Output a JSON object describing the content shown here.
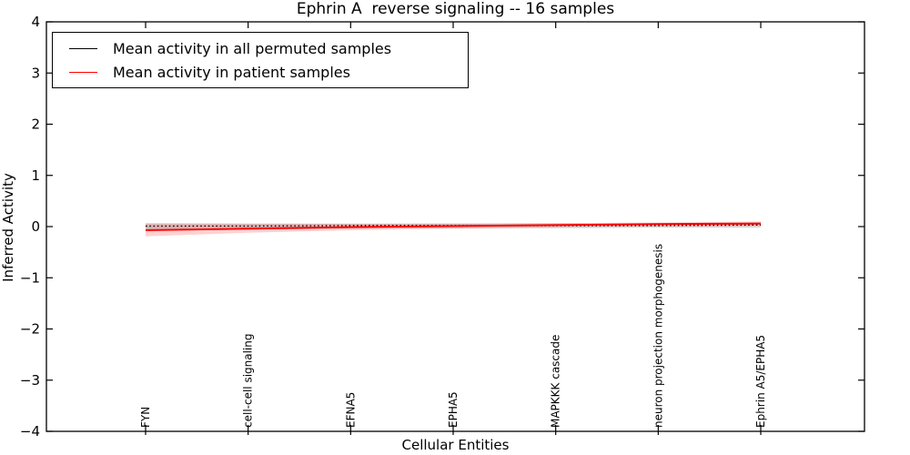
{
  "figure": {
    "title": "Ephrin A  reverse signaling -- 16 samples",
    "xlabel": "Cellular Entities",
    "ylabel": "Inferred Activity"
  },
  "legend": {
    "entries": [
      {
        "label": "Mean activity in all permuted samples",
        "color": "#000000"
      },
      {
        "label": "Mean activity in patient samples",
        "color": "#ff0000"
      }
    ],
    "position": "upper left"
  },
  "chart_data": {
    "type": "line",
    "title": "Ephrin A  reverse signaling -- 16 samples",
    "xlabel": "Cellular Entities",
    "ylabel": "Inferred Activity",
    "ylim": [
      -4,
      4
    ],
    "grid": false,
    "legend_position": "upper left",
    "yticks": [
      {
        "value": 4,
        "label": "4"
      },
      {
        "value": 3,
        "label": "3"
      },
      {
        "value": 2,
        "label": "2"
      },
      {
        "value": 1,
        "label": "1"
      },
      {
        "value": 0,
        "label": "0"
      },
      {
        "value": -1,
        "label": "−1"
      },
      {
        "value": -2,
        "label": "−2"
      },
      {
        "value": -3,
        "label": "−3"
      },
      {
        "value": -4,
        "label": "−4"
      }
    ],
    "categories": [
      "FYN",
      "cell-cell signaling",
      "EFNA5",
      "EPHA5",
      "MAPKKK cascade",
      "neuron projection morphogenesis",
      "Ephrin A5/EPHA5"
    ],
    "series": [
      {
        "name": "Mean activity in all permuted samples",
        "color": "#000000",
        "style": "dotted",
        "values": [
          0.01,
          0.01,
          0.02,
          0.02,
          0.02,
          0.02,
          0.03
        ],
        "band": {
          "upper": [
            0.07,
            0.06,
            0.06,
            0.06,
            0.06,
            0.06,
            0.07
          ],
          "lower": [
            -0.09,
            -0.06,
            -0.04,
            -0.03,
            -0.03,
            -0.02,
            -0.02
          ],
          "fill": "#999999",
          "opacity": 0.4
        }
      },
      {
        "name": "Mean activity in patient samples",
        "color": "#ff0000",
        "style": "solid",
        "values": [
          -0.07,
          -0.04,
          -0.01,
          0.01,
          0.03,
          0.05,
          0.06
        ],
        "band": {
          "upper": [
            0.05,
            0.05,
            0.05,
            0.06,
            0.07,
            0.08,
            0.1
          ],
          "lower": [
            -0.19,
            -0.12,
            -0.07,
            -0.04,
            -0.01,
            0.01,
            0.02
          ],
          "fill": "#ff0000",
          "opacity": 0.18
        }
      }
    ]
  }
}
